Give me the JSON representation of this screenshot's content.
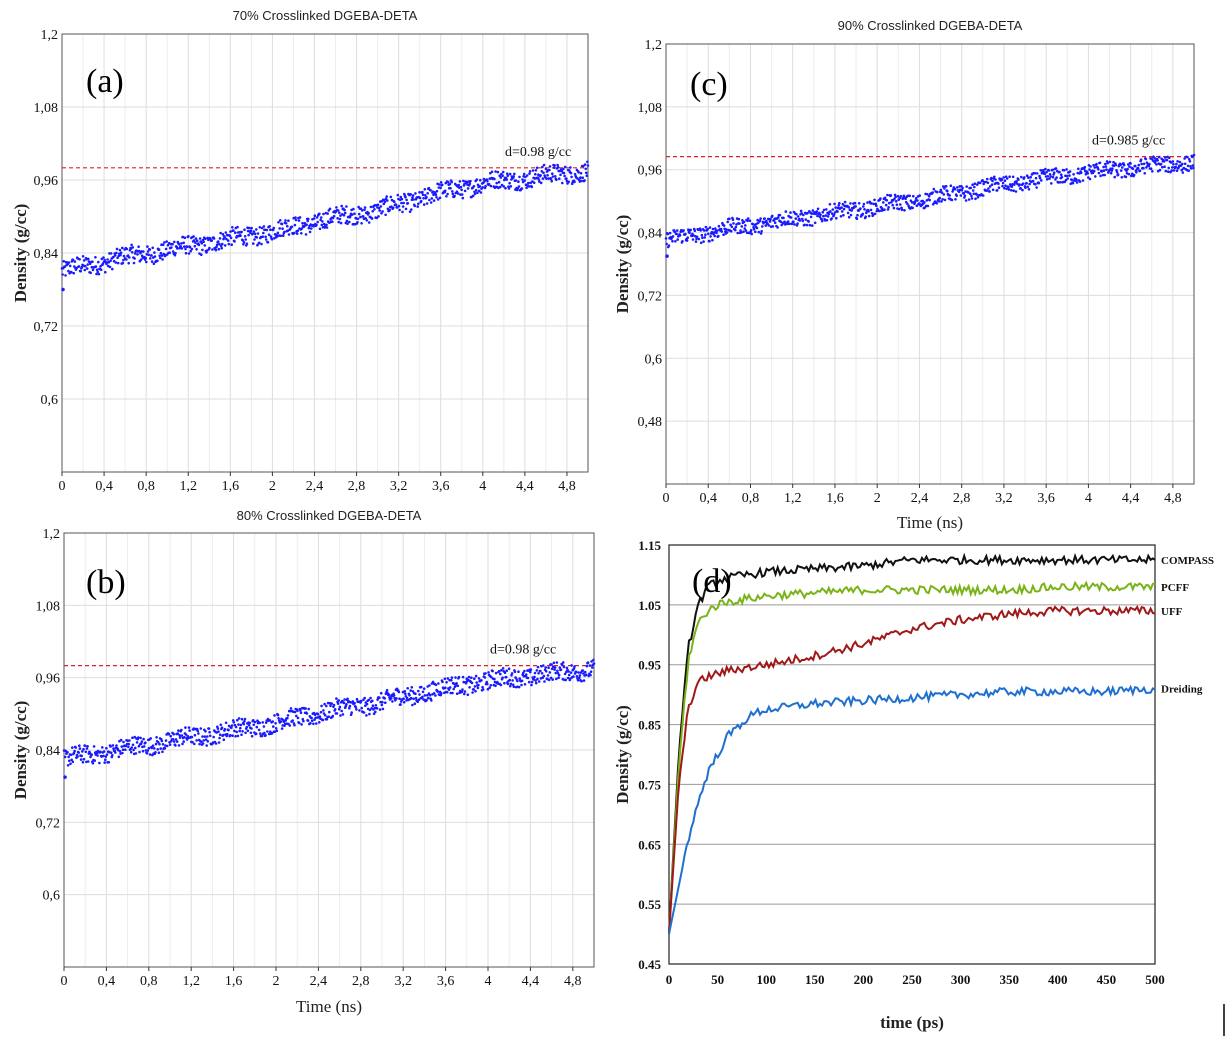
{
  "colors": {
    "scatter": "#1a1aff",
    "ref_line": "#e02020",
    "grid": "#dddddd",
    "frame": "#555555"
  },
  "chart_data": [
    {
      "id": "a",
      "type": "scatter",
      "panel_label": "(a)",
      "title": "70% Crosslinked DGEBA-DETA",
      "xlabel": "",
      "ylabel": "Density (g/cc)",
      "xlim": [
        0,
        5.0
      ],
      "ylim": [
        0.48,
        1.2
      ],
      "xticks": [
        "0",
        "0,4",
        "0,8",
        "1,2",
        "1,6",
        "2",
        "2,4",
        "2,8",
        "3,2",
        "3,6",
        "4",
        "4,4",
        "4,8"
      ],
      "yticks": [
        "0,6",
        "0,72",
        "0,84",
        "0,96",
        "1,08",
        "1,2"
      ],
      "ref_line": 0.98,
      "annotation": "d=0.98 g/cc",
      "series": [
        {
          "x": [
            0,
            0.5,
            1.0,
            1.5,
            2.0,
            2.5,
            3.0,
            3.5,
            4.0,
            4.5,
            5.0
          ],
          "y": [
            0.81,
            0.83,
            0.845,
            0.86,
            0.875,
            0.895,
            0.91,
            0.935,
            0.955,
            0.965,
            0.975
          ]
        }
      ]
    },
    {
      "id": "b",
      "type": "scatter",
      "panel_label": "(b)",
      "title": "80% Crosslinked DGEBA-DETA",
      "xlabel": "Time (ns)",
      "ylabel": "Density (g/cc)",
      "xlim": [
        0,
        5.0
      ],
      "ylim": [
        0.48,
        1.2
      ],
      "xticks": [
        "0",
        "0,4",
        "0,8",
        "1,2",
        "1,6",
        "2",
        "2,4",
        "2,8",
        "3,2",
        "3,6",
        "4",
        "4,4",
        "4,8"
      ],
      "yticks": [
        "0,6",
        "0,72",
        "0,84",
        "0,96",
        "1,08",
        "1,2"
      ],
      "ref_line": 0.98,
      "annotation": "d=0.98 g/cc",
      "series": [
        {
          "x": [
            0,
            0.5,
            1.0,
            1.5,
            2.0,
            2.5,
            3.0,
            3.5,
            4.0,
            4.5,
            5.0
          ],
          "y": [
            0.825,
            0.84,
            0.855,
            0.87,
            0.885,
            0.905,
            0.92,
            0.94,
            0.955,
            0.965,
            0.975
          ]
        }
      ]
    },
    {
      "id": "c",
      "type": "scatter",
      "panel_label": "(c)",
      "title": "90% Crosslinked DGEBA-DETA",
      "xlabel": "Time (ns)",
      "ylabel": "Density (g/cc)",
      "xlim": [
        0,
        5.0
      ],
      "ylim": [
        0.36,
        1.2
      ],
      "xticks": [
        "0",
        "0,4",
        "0,8",
        "1,2",
        "1,6",
        "2",
        "2,4",
        "2,8",
        "3,2",
        "3,6",
        "4",
        "4,4",
        "4,8"
      ],
      "yticks": [
        "0,48",
        "0,6",
        "0,72",
        "0,84",
        "0,96",
        "1,08",
        "1,2"
      ],
      "ref_line": 0.985,
      "annotation": "d=0.985 g/cc",
      "series": [
        {
          "x": [
            0,
            0.5,
            1.0,
            1.5,
            2.0,
            2.5,
            3.0,
            3.5,
            4.0,
            4.5,
            5.0
          ],
          "y": [
            0.825,
            0.845,
            0.86,
            0.875,
            0.89,
            0.905,
            0.925,
            0.94,
            0.955,
            0.965,
            0.975
          ]
        }
      ]
    },
    {
      "id": "d",
      "type": "line",
      "panel_label": "(d)",
      "xlabel": "time (ps)",
      "ylabel": "Density (g/cc)",
      "xlim": [
        0,
        500
      ],
      "ylim": [
        0.45,
        1.15
      ],
      "xticks": [
        "0",
        "50",
        "100",
        "150",
        "200",
        "250",
        "300",
        "350",
        "400",
        "450",
        "500"
      ],
      "yticks": [
        "0.45",
        "0.55",
        "0.65",
        "0.75",
        "0.85",
        "0.95",
        "1.05",
        "1.15"
      ],
      "series": [
        {
          "name": "COMPASS",
          "color": "#111111",
          "x": [
            0,
            10,
            20,
            30,
            40,
            50,
            60,
            80,
            100,
            150,
            200,
            250,
            300,
            350,
            400,
            450,
            500
          ],
          "y": [
            0.5,
            0.8,
            0.98,
            1.05,
            1.08,
            1.09,
            1.095,
            1.1,
            1.105,
            1.11,
            1.115,
            1.125,
            1.125,
            1.125,
            1.125,
            1.125,
            1.125
          ]
        },
        {
          "name": "PCFF",
          "color": "#7ab317",
          "x": [
            0,
            10,
            20,
            30,
            40,
            50,
            60,
            80,
            100,
            150,
            200,
            250,
            300,
            350,
            400,
            450,
            500
          ],
          "y": [
            0.5,
            0.78,
            0.96,
            1.02,
            1.04,
            1.05,
            1.055,
            1.06,
            1.065,
            1.07,
            1.075,
            1.075,
            1.075,
            1.075,
            1.08,
            1.08,
            1.08
          ]
        },
        {
          "name": "UFF",
          "color": "#a01818",
          "x": [
            0,
            10,
            20,
            30,
            40,
            50,
            60,
            80,
            100,
            150,
            200,
            250,
            300,
            350,
            400,
            450,
            500
          ],
          "y": [
            0.5,
            0.75,
            0.88,
            0.92,
            0.93,
            0.935,
            0.94,
            0.945,
            0.95,
            0.965,
            0.985,
            1.01,
            1.025,
            1.035,
            1.04,
            1.04,
            1.04
          ]
        },
        {
          "name": "Dreiding",
          "color": "#1f6fd0",
          "x": [
            0,
            10,
            20,
            30,
            40,
            50,
            60,
            70,
            80,
            90,
            100,
            150,
            200,
            250,
            300,
            350,
            400,
            450,
            500
          ],
          "y": [
            0.5,
            0.58,
            0.66,
            0.72,
            0.77,
            0.8,
            0.83,
            0.845,
            0.86,
            0.87,
            0.875,
            0.885,
            0.89,
            0.895,
            0.9,
            0.905,
            0.905,
            0.905,
            0.91
          ]
        }
      ]
    }
  ]
}
